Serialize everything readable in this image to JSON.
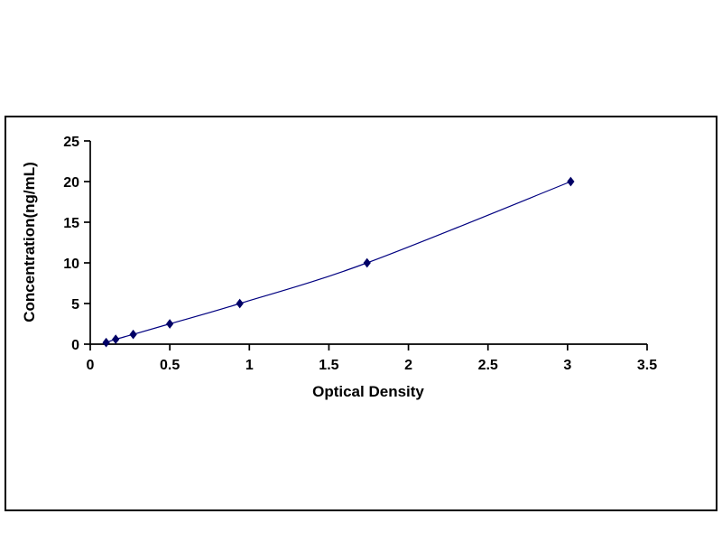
{
  "page": {
    "background": "#ffffff"
  },
  "chart_data": {
    "type": "line",
    "title": "",
    "xlabel": "Optical Density",
    "ylabel": "Concentration(ng/mL)",
    "x": [
      0.1,
      0.16,
      0.27,
      0.5,
      0.94,
      1.74,
      3.02
    ],
    "y": [
      0.2,
      0.6,
      1.2,
      2.5,
      5,
      10,
      20
    ],
    "xlim": [
      0,
      3.5
    ],
    "ylim": [
      0,
      25
    ],
    "x_ticks": [
      0,
      0.5,
      1,
      1.5,
      2,
      2.5,
      3,
      3.5
    ],
    "y_ticks": [
      0,
      5,
      10,
      15,
      20,
      25
    ],
    "grid": false,
    "legend": "none",
    "line_color": "#000080",
    "marker": "diamond",
    "marker_color": "#000066",
    "axis_color": "#000000"
  }
}
